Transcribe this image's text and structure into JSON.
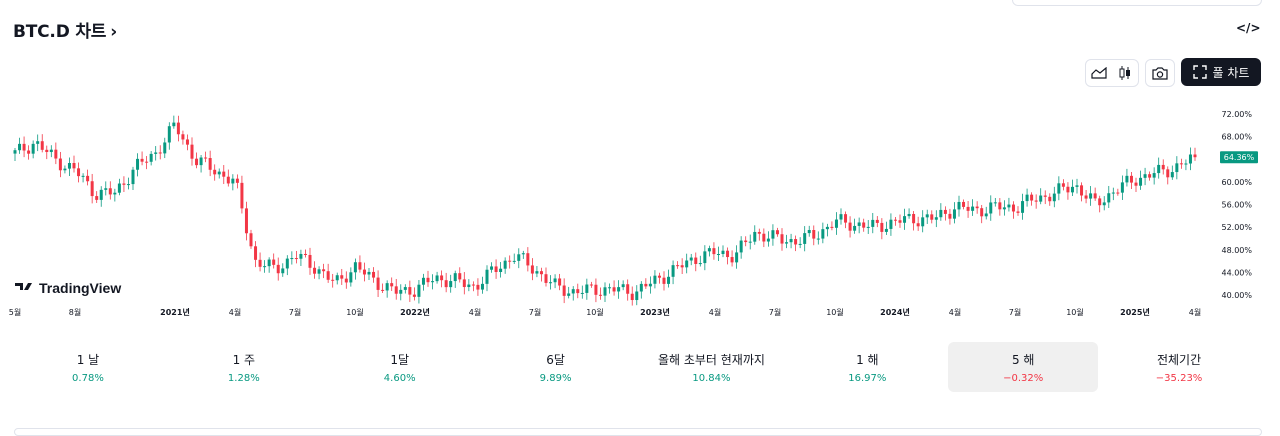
{
  "header": {
    "title": "BTC.D 차트",
    "title_chevron": "›",
    "embed_label": "</>"
  },
  "toolbar": {
    "line_icon": "area-chart-icon",
    "candle_icon": "candlestick-icon",
    "camera_icon": "camera-icon",
    "full_chart_label": "풀 차트",
    "full_chart_icon": "fullscreen-icon"
  },
  "brand": {
    "name": "TradingView"
  },
  "colors": {
    "up": "#089981",
    "down": "#f23645",
    "badge_bg": "#089981",
    "axis_text": "#131722"
  },
  "chart_data": {
    "type": "candlestick",
    "y_unit": "%",
    "ylim": [
      38.5,
      74.2
    ],
    "y_ticks": [
      "72.00%",
      "68.00%",
      "64.00%",
      "60.00%",
      "56.00%",
      "52.00%",
      "48.00%",
      "44.00%",
      "40.00%"
    ],
    "y_tick_values": [
      72,
      68,
      64,
      60,
      56,
      52,
      48,
      44,
      40
    ],
    "x_ticks": [
      "5월",
      "8월",
      "2021년",
      "4월",
      "7월",
      "10월",
      "2022년",
      "4월",
      "7월",
      "10월",
      "2023년",
      "4월",
      "7월",
      "10월",
      "2024년",
      "4월",
      "7월",
      "10월",
      "2025년",
      "4월"
    ],
    "x_tick_dates": [
      "2020-05",
      "2020-08",
      "2021-01",
      "2021-04",
      "2021-07",
      "2021-10",
      "2022-01",
      "2022-04",
      "2022-07",
      "2022-10",
      "2023-01",
      "2023-04",
      "2023-07",
      "2023-10",
      "2024-01",
      "2024-04",
      "2024-07",
      "2024-10",
      "2025-01",
      "2025-04"
    ],
    "x_range": [
      "2020-05",
      "2025-05"
    ],
    "bold_ticks": [
      "2021년",
      "2022년",
      "2023년",
      "2024년",
      "2025년"
    ],
    "last_value_label": "64.36%",
    "last_value": 64.36,
    "close_trend": [
      [
        "2020-05",
        65.0
      ],
      [
        "2020-06",
        67.0
      ],
      [
        "2020-07",
        64.0
      ],
      [
        "2020-08",
        62.0
      ],
      [
        "2020-09",
        58.0
      ],
      [
        "2020-10",
        58.0
      ],
      [
        "2020-11",
        62.5
      ],
      [
        "2020-12",
        65.0
      ],
      [
        "2021-01",
        70.0
      ],
      [
        "2021-02",
        64.0
      ],
      [
        "2021-03",
        62.0
      ],
      [
        "2021-04",
        60.0
      ],
      [
        "2021-05",
        46.0
      ],
      [
        "2021-06",
        44.5
      ],
      [
        "2021-07",
        47.0
      ],
      [
        "2021-08",
        45.0
      ],
      [
        "2021-09",
        42.0
      ],
      [
        "2021-10",
        45.0
      ],
      [
        "2021-11",
        42.5
      ],
      [
        "2021-12",
        40.5
      ],
      [
        "2022-01",
        41.0
      ],
      [
        "2022-02",
        43.0
      ],
      [
        "2022-03",
        42.5
      ],
      [
        "2022-04",
        41.5
      ],
      [
        "2022-05",
        44.5
      ],
      [
        "2022-06",
        47.0
      ],
      [
        "2022-07",
        44.5
      ],
      [
        "2022-08",
        41.5
      ],
      [
        "2022-09",
        40.5
      ],
      [
        "2022-10",
        41.0
      ],
      [
        "2022-11",
        41.0
      ],
      [
        "2022-12",
        40.5
      ],
      [
        "2023-01",
        42.5
      ],
      [
        "2023-02",
        44.5
      ],
      [
        "2023-03",
        46.5
      ],
      [
        "2023-04",
        47.5
      ],
      [
        "2023-05",
        47.0
      ],
      [
        "2023-06",
        51.0
      ],
      [
        "2023-07",
        50.0
      ],
      [
        "2023-08",
        49.5
      ],
      [
        "2023-09",
        50.5
      ],
      [
        "2023-10",
        53.0
      ],
      [
        "2023-11",
        52.5
      ],
      [
        "2023-12",
        52.0
      ],
      [
        "2024-01",
        53.0
      ],
      [
        "2024-02",
        53.5
      ],
      [
        "2024-03",
        53.5
      ],
      [
        "2024-04",
        55.5
      ],
      [
        "2024-05",
        55.0
      ],
      [
        "2024-06",
        55.5
      ],
      [
        "2024-07",
        55.5
      ],
      [
        "2024-08",
        57.0
      ],
      [
        "2024-09",
        58.0
      ],
      [
        "2024-10",
        59.5
      ],
      [
        "2024-11",
        56.0
      ],
      [
        "2024-12",
        58.5
      ],
      [
        "2025-01",
        60.5
      ],
      [
        "2025-02",
        61.5
      ],
      [
        "2025-03",
        62.5
      ],
      [
        "2025-04",
        64.36
      ]
    ]
  },
  "periods": [
    {
      "label": "1 날",
      "value": "0.78%",
      "dir": "up"
    },
    {
      "label": "1 주",
      "value": "1.28%",
      "dir": "up"
    },
    {
      "label": "1달",
      "value": "4.60%",
      "dir": "up"
    },
    {
      "label": "6달",
      "value": "9.89%",
      "dir": "up"
    },
    {
      "label": "올해 초부터 현재까지",
      "value": "10.84%",
      "dir": "up"
    },
    {
      "label": "1 해",
      "value": "16.97%",
      "dir": "up"
    },
    {
      "label": "5 해",
      "value": "−0.32%",
      "dir": "down",
      "selected": true
    },
    {
      "label": "전체기간",
      "value": "−35.23%",
      "dir": "down"
    }
  ]
}
